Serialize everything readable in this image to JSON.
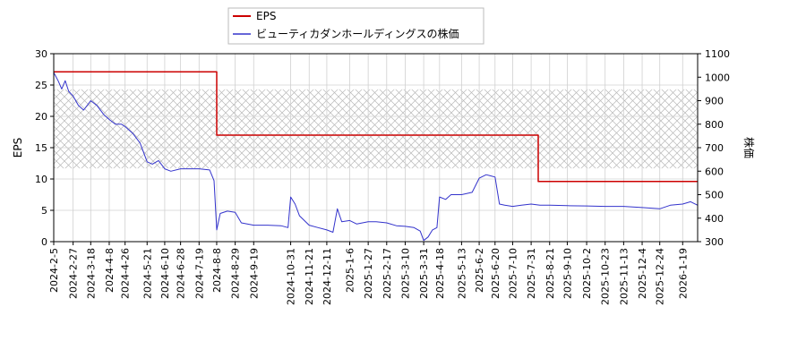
{
  "chart_data": {
    "type": "line",
    "legend": {
      "placement": "top-center",
      "entries": [
        "EPS",
        "ビューティカダンホールディングスの株価"
      ]
    },
    "grid": true,
    "y_left": {
      "label": "EPS",
      "range": [
        0,
        30
      ],
      "ticks": [
        "0",
        "5",
        "10",
        "15",
        "20",
        "25",
        "30"
      ]
    },
    "y_right": {
      "label": "株価",
      "range": [
        300,
        1100
      ],
      "ticks": [
        "300",
        "400",
        "500",
        "600",
        "700",
        "800",
        "900",
        "1000",
        "1100"
      ]
    },
    "x": {
      "range": [
        "2024-02-05",
        "2026-02-05"
      ],
      "tick_labels": [
        "2024-2-5",
        "2024-2-27",
        "2024-3-18",
        "2024-4-8",
        "2024-4-26",
        "2024-5-21",
        "2024-6-10",
        "2024-6-28",
        "2024-7-19",
        "2024-8-8",
        "2024-8-29",
        "2024-9-19",
        "2024-10-31",
        "2024-11-21",
        "2024-12-11",
        "2025-1-6",
        "2025-1-27",
        "2025-2-17",
        "2025-3-10",
        "2025-3-31",
        "2025-4-18",
        "2025-5-13",
        "2025-6-2",
        "2025-6-20",
        "2025-7-10",
        "2025-7-31",
        "2025-8-21",
        "2025-9-10",
        "2025-10-2",
        "2025-10-23",
        "2025-11-13",
        "2025-12-4",
        "2025-12-24",
        "2026-1-19"
      ]
    },
    "band": {
      "axis": "left",
      "range": [
        11.7,
        24.3
      ],
      "pattern": "crosshatch"
    },
    "series": [
      {
        "name": "EPS",
        "axis": "left",
        "color": "#cc0000",
        "step": true,
        "points": [
          [
            "2024-02-05",
            27.1
          ],
          [
            "2024-08-08",
            17.0
          ],
          [
            "2025-08-08",
            9.6
          ],
          [
            "2026-02-05",
            9.6
          ]
        ]
      },
      {
        "name": "ビューティカダンホールディングスの株価",
        "axis": "right",
        "color": "#3333cc",
        "points": [
          [
            "2024-02-05",
            1020
          ],
          [
            "2024-02-10",
            985
          ],
          [
            "2024-02-14",
            950
          ],
          [
            "2024-02-18",
            985
          ],
          [
            "2024-02-22",
            940
          ],
          [
            "2024-02-27",
            920
          ],
          [
            "2024-03-04",
            880
          ],
          [
            "2024-03-10",
            860
          ],
          [
            "2024-03-18",
            900
          ],
          [
            "2024-03-25",
            880
          ],
          [
            "2024-04-02",
            840
          ],
          [
            "2024-04-08",
            820
          ],
          [
            "2024-04-15",
            800
          ],
          [
            "2024-04-22",
            800
          ],
          [
            "2024-04-26",
            790
          ],
          [
            "2024-05-05",
            760
          ],
          [
            "2024-05-13",
            720
          ],
          [
            "2024-05-21",
            640
          ],
          [
            "2024-05-27",
            630
          ],
          [
            "2024-06-03",
            645
          ],
          [
            "2024-06-10",
            610
          ],
          [
            "2024-06-17",
            600
          ],
          [
            "2024-06-28",
            610
          ],
          [
            "2024-07-08",
            610
          ],
          [
            "2024-07-19",
            610
          ],
          [
            "2024-07-31",
            605
          ],
          [
            "2024-08-05",
            560
          ],
          [
            "2024-08-08",
            350
          ],
          [
            "2024-08-12",
            420
          ],
          [
            "2024-08-20",
            430
          ],
          [
            "2024-08-29",
            425
          ],
          [
            "2024-09-05",
            380
          ],
          [
            "2024-09-19",
            370
          ],
          [
            "2024-10-05",
            370
          ],
          [
            "2024-10-20",
            368
          ],
          [
            "2024-10-28",
            360
          ],
          [
            "2024-10-31",
            490
          ],
          [
            "2024-11-05",
            460
          ],
          [
            "2024-11-10",
            410
          ],
          [
            "2024-11-21",
            370
          ],
          [
            "2024-12-01",
            360
          ],
          [
            "2024-12-11",
            350
          ],
          [
            "2024-12-18",
            340
          ],
          [
            "2024-12-23",
            440
          ],
          [
            "2024-12-28",
            385
          ],
          [
            "2025-01-06",
            390
          ],
          [
            "2025-01-14",
            375
          ],
          [
            "2025-01-27",
            385
          ],
          [
            "2025-02-05",
            385
          ],
          [
            "2025-02-17",
            380
          ],
          [
            "2025-02-28",
            368
          ],
          [
            "2025-03-10",
            365
          ],
          [
            "2025-03-20",
            360
          ],
          [
            "2025-03-27",
            345
          ],
          [
            "2025-03-31",
            305
          ],
          [
            "2025-04-05",
            320
          ],
          [
            "2025-04-10",
            350
          ],
          [
            "2025-04-15",
            360
          ],
          [
            "2025-04-18",
            490
          ],
          [
            "2025-04-25",
            480
          ],
          [
            "2025-05-01",
            500
          ],
          [
            "2025-05-13",
            500
          ],
          [
            "2025-05-25",
            510
          ],
          [
            "2025-06-02",
            570
          ],
          [
            "2025-06-10",
            585
          ],
          [
            "2025-06-15",
            580
          ],
          [
            "2025-06-20",
            575
          ],
          [
            "2025-06-25",
            460
          ],
          [
            "2025-07-01",
            455
          ],
          [
            "2025-07-10",
            450
          ],
          [
            "2025-07-20",
            455
          ],
          [
            "2025-07-31",
            460
          ],
          [
            "2025-08-10",
            455
          ],
          [
            "2025-08-21",
            455
          ],
          [
            "2025-09-10",
            453
          ],
          [
            "2025-10-02",
            452
          ],
          [
            "2025-10-23",
            450
          ],
          [
            "2025-11-13",
            450
          ],
          [
            "2025-12-04",
            445
          ],
          [
            "2025-12-24",
            440
          ],
          [
            "2026-01-05",
            455
          ],
          [
            "2026-01-19",
            460
          ],
          [
            "2026-01-28",
            470
          ],
          [
            "2026-02-05",
            455
          ]
        ]
      }
    ]
  }
}
